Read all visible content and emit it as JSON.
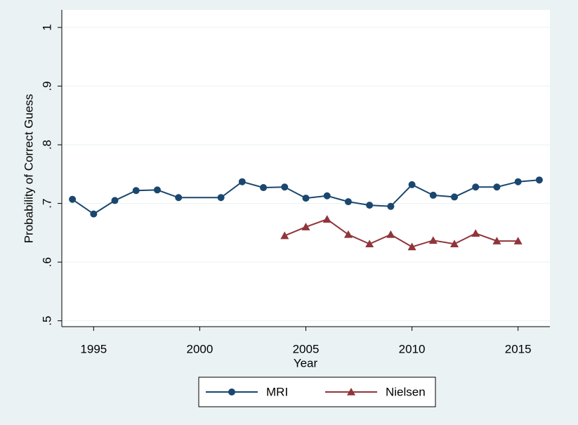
{
  "chart_data": {
    "type": "line",
    "x_label": "Year",
    "y_label": "Probability of Correct Guess",
    "xlim": [
      1993.5,
      2016.5
    ],
    "xticks": [
      1995,
      2000,
      2005,
      2010,
      2015
    ],
    "ylim": [
      0.49,
      1.03
    ],
    "yticks": [
      {
        "value": 0.5,
        "label": ".5"
      },
      {
        "value": 0.6,
        "label": ".6"
      },
      {
        "value": 0.7,
        "label": ".7"
      },
      {
        "value": 0.8,
        "label": ".8"
      },
      {
        "value": 0.9,
        "label": ".9"
      },
      1
    ],
    "grid": true,
    "legend": "bottom",
    "series": [
      {
        "name": "MRI",
        "color": "#1a476f",
        "marker": "circle",
        "x": [
          1994,
          1995,
          1996,
          1997,
          1998,
          1999,
          2001,
          2002,
          2003,
          2004,
          2005,
          2006,
          2007,
          2008,
          2009,
          2010,
          2011,
          2012,
          2013,
          2014,
          2015,
          2016
        ],
        "values": [
          0.707,
          0.682,
          0.705,
          0.722,
          0.723,
          0.71,
          0.71,
          0.737,
          0.727,
          0.728,
          0.709,
          0.713,
          0.703,
          0.697,
          0.695,
          0.732,
          0.714,
          0.711,
          0.728,
          0.728,
          0.737,
          0.74
        ]
      },
      {
        "name": "Nielsen",
        "color": "#90353b",
        "marker": "triangle",
        "x": [
          2004,
          2005,
          2006,
          2007,
          2008,
          2009,
          2010,
          2011,
          2012,
          2013,
          2014,
          2015
        ],
        "values": [
          0.645,
          0.66,
          0.673,
          0.647,
          0.631,
          0.647,
          0.626,
          0.637,
          0.631,
          0.649,
          0.636,
          0.636
        ]
      }
    ]
  }
}
